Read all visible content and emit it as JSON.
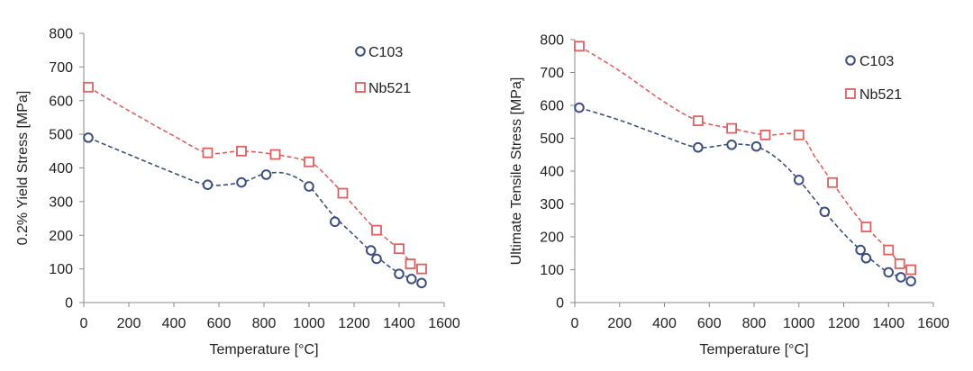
{
  "chart_data": [
    {
      "type": "scatter",
      "title": "",
      "xlabel": "Temperature [°C]",
      "ylabel": "0.2% Yield Stress [MPa]",
      "xlim": [
        0,
        1600
      ],
      "ylim": [
        0,
        800
      ],
      "xticks": [
        0,
        200,
        400,
        600,
        800,
        1000,
        1200,
        1400,
        1600
      ],
      "yticks": [
        0,
        100,
        200,
        300,
        400,
        500,
        600,
        700,
        800
      ],
      "legend_position": "top-right",
      "grid": false,
      "series": [
        {
          "name": "C103",
          "marker": "circle",
          "color": "#3c4f7e",
          "x": [
            20,
            550,
            700,
            810,
            1000,
            1115,
            1275,
            1300,
            1400,
            1455,
            1500
          ],
          "y": [
            490,
            350,
            357,
            380,
            345,
            240,
            155,
            130,
            85,
            70,
            58
          ],
          "trend": [
            [
              20,
              490
            ],
            [
              200,
              440
            ],
            [
              400,
              385
            ],
            [
              550,
              350
            ],
            [
              700,
              357
            ],
            [
              800,
              382
            ],
            [
              900,
              383
            ],
            [
              1000,
              345
            ],
            [
              1100,
              265
            ],
            [
              1200,
              200
            ],
            [
              1275,
              152
            ],
            [
              1350,
              110
            ],
            [
              1400,
              88
            ],
            [
              1455,
              70
            ],
            [
              1500,
              58
            ]
          ]
        },
        {
          "name": "Nb521",
          "marker": "square",
          "color": "#e06060",
          "x": [
            20,
            550,
            700,
            850,
            1000,
            1150,
            1300,
            1400,
            1450,
            1500
          ],
          "y": [
            640,
            445,
            450,
            440,
            418,
            325,
            215,
            160,
            115,
            100
          ],
          "trend": [
            [
              20,
              640
            ],
            [
              200,
              570
            ],
            [
              400,
              495
            ],
            [
              550,
              445
            ],
            [
              700,
              450
            ],
            [
              850,
              440
            ],
            [
              1000,
              418
            ],
            [
              1075,
              378
            ],
            [
              1150,
              325
            ],
            [
              1225,
              268
            ],
            [
              1300,
              215
            ],
            [
              1400,
              158
            ],
            [
              1450,
              122
            ],
            [
              1500,
              100
            ]
          ]
        }
      ]
    },
    {
      "type": "scatter",
      "title": "",
      "xlabel": "Temperature [°C]",
      "ylabel": "Ultimate Tensile Stress [MPa]",
      "xlim": [
        0,
        1600
      ],
      "ylim": [
        0,
        800
      ],
      "xticks": [
        0,
        200,
        400,
        600,
        800,
        1000,
        1200,
        1400,
        1600
      ],
      "yticks": [
        0,
        100,
        200,
        300,
        400,
        500,
        600,
        700,
        800
      ],
      "legend_position": "top-right",
      "grid": false,
      "series": [
        {
          "name": "C103",
          "marker": "circle",
          "color": "#3c4f7e",
          "x": [
            20,
            550,
            700,
            810,
            1000,
            1115,
            1275,
            1300,
            1400,
            1455,
            1500
          ],
          "y": [
            593,
            472,
            480,
            475,
            373,
            276,
            160,
            135,
            92,
            77,
            65
          ],
          "trend": [
            [
              20,
              593
            ],
            [
              200,
              555
            ],
            [
              400,
              505
            ],
            [
              550,
              472
            ],
            [
              700,
              482
            ],
            [
              810,
              474
            ],
            [
              900,
              440
            ],
            [
              1000,
              373
            ],
            [
              1115,
              276
            ],
            [
              1200,
              210
            ],
            [
              1275,
              160
            ],
            [
              1350,
              115
            ],
            [
              1400,
              92
            ],
            [
              1455,
              77
            ],
            [
              1500,
              65
            ]
          ]
        },
        {
          "name": "Nb521",
          "marker": "square",
          "color": "#e06060",
          "x": [
            20,
            550,
            700,
            850,
            1000,
            1150,
            1300,
            1400,
            1450,
            1500
          ],
          "y": [
            780,
            553,
            530,
            510,
            510,
            365,
            230,
            160,
            118,
            100
          ],
          "trend": [
            [
              20,
              780
            ],
            [
              200,
              705
            ],
            [
              400,
              610
            ],
            [
              550,
              553
            ],
            [
              700,
              530
            ],
            [
              850,
              510
            ],
            [
              1000,
              510
            ],
            [
              1075,
              440
            ],
            [
              1150,
              365
            ],
            [
              1225,
              293
            ],
            [
              1300,
              230
            ],
            [
              1400,
              160
            ],
            [
              1450,
              120
            ],
            [
              1500,
              100
            ]
          ]
        }
      ]
    }
  ]
}
